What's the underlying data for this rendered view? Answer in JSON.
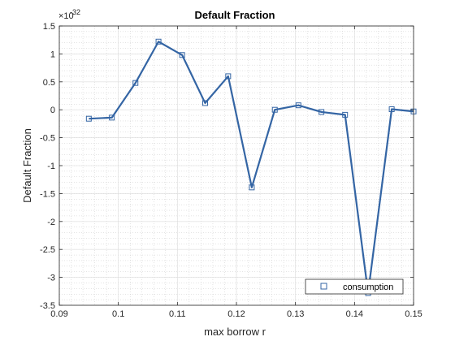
{
  "chart_data": {
    "type": "line",
    "title": "Default Fraction",
    "xlabel": "max borrow r",
    "ylabel": "Default Fraction",
    "exponent_label": "×10",
    "exponent_power": "-32",
    "xlim": [
      0.09,
      0.15
    ],
    "ylim": [
      -3.5,
      1.5
    ],
    "xticks": [
      0.09,
      0.1,
      0.11,
      0.12,
      0.13,
      0.14,
      0.15
    ],
    "xtick_labels": [
      "0.09",
      "0.1",
      "0.11",
      "0.12",
      "0.13",
      "0.14",
      "0.15"
    ],
    "yticks": [
      1.5,
      1,
      0.5,
      0,
      -0.5,
      -1,
      -1.5,
      -2,
      -2.5,
      -3,
      -3.5
    ],
    "ytick_labels": [
      "1.5",
      "1",
      "0.5",
      "0",
      "-0.5",
      "-1",
      "-1.5",
      "-2",
      "-2.5",
      "-3",
      "-3.5"
    ],
    "grid": true,
    "minor_grid": true,
    "legend_location": "bottom-right",
    "series": [
      {
        "name": "consumption",
        "color": "#3465A4",
        "marker": "square",
        "x": [
          0.095,
          0.0989,
          0.1029,
          0.1068,
          0.1108,
          0.1147,
          0.1186,
          0.1226,
          0.1265,
          0.1305,
          0.1344,
          0.1384,
          0.1423,
          0.1463,
          0.15
        ],
        "y": [
          -0.16,
          -0.14,
          0.48,
          1.22,
          0.98,
          0.12,
          0.6,
          -1.39,
          0.0,
          0.08,
          -0.04,
          -0.09,
          -3.28,
          0.01,
          -0.03
        ]
      }
    ]
  }
}
